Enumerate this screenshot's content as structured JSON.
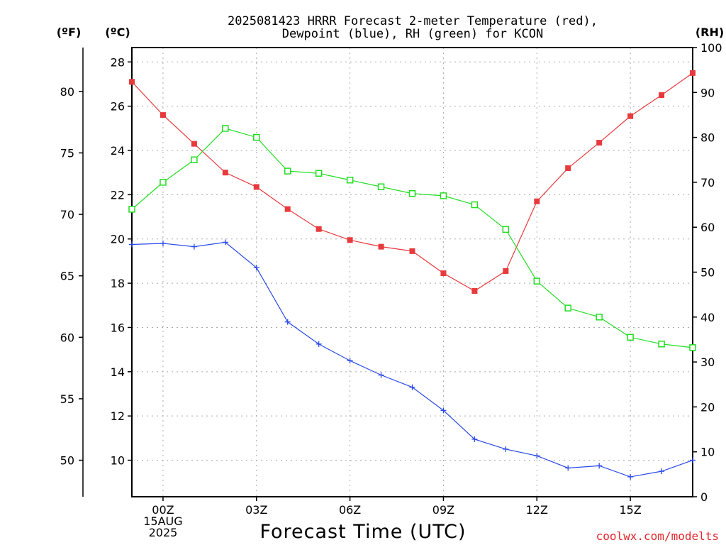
{
  "chart_data": {
    "type": "line",
    "title_lines": [
      "2025081423 HRRR Forecast 2-meter Temperature (red),",
      "Dewpoint (blue), RH (green) for KCON"
    ],
    "xlabel": "Forecast Time (UTC)",
    "x_ticks": [
      {
        "hour": 0,
        "lines": [
          "00Z",
          "15AUG",
          "2025"
        ]
      },
      {
        "hour": 3,
        "lines": [
          "03Z"
        ]
      },
      {
        "hour": 6,
        "lines": [
          "06Z"
        ]
      },
      {
        "hour": 9,
        "lines": [
          "09Z"
        ]
      },
      {
        "hour": 12,
        "lines": [
          "12Z"
        ]
      },
      {
        "hour": 15,
        "lines": [
          "15Z"
        ]
      }
    ],
    "xlim": [
      -1,
      17
    ],
    "grid": true,
    "axes": {
      "celsius": {
        "unit_label": "(ºC)",
        "ticks": [
          10,
          12,
          14,
          16,
          18,
          20,
          22,
          24,
          26,
          28
        ],
        "range": [
          8.35,
          28.65
        ]
      },
      "fahrenheit": {
        "unit_label": "(ºF)",
        "ticks": [
          50,
          55,
          60,
          65,
          70,
          75,
          80
        ],
        "range": [
          47.03,
          83.57
        ]
      },
      "rh": {
        "unit_label": "(RH)",
        "ticks": [
          0,
          10,
          20,
          30,
          40,
          50,
          60,
          70,
          80,
          90,
          100
        ],
        "range": [
          0,
          100
        ]
      }
    },
    "x": [
      -1,
      0,
      1,
      2,
      3,
      4,
      5,
      6,
      7,
      8,
      9,
      10,
      11,
      12,
      13,
      14,
      15,
      16,
      17
    ],
    "series": [
      {
        "name": "Temperature",
        "axis": "celsius",
        "color": "#e8393c",
        "marker": "filled-square",
        "values": [
          27.1,
          25.6,
          24.3,
          23.0,
          22.35,
          21.35,
          20.45,
          19.95,
          19.65,
          19.45,
          18.45,
          17.65,
          18.55,
          21.7,
          23.2,
          24.35,
          25.55,
          26.5,
          27.5
        ]
      },
      {
        "name": "Dewpoint",
        "axis": "celsius",
        "color": "#2a49e8",
        "marker": "plus",
        "values": [
          19.75,
          19.8,
          19.65,
          19.85,
          18.7,
          16.25,
          15.25,
          14.5,
          13.85,
          13.3,
          12.25,
          10.95,
          10.5,
          10.2,
          9.65,
          9.75,
          9.25,
          9.5,
          10.0
        ]
      },
      {
        "name": "RH",
        "axis": "rh",
        "color": "#22dd22",
        "marker": "open-square",
        "values": [
          64,
          70,
          75,
          82,
          80,
          72.5,
          72,
          70.5,
          69,
          67.5,
          67,
          65,
          59.5,
          48,
          42,
          40,
          35.5,
          34,
          33.2
        ]
      }
    ]
  },
  "credit": "coolwx.com/modelts"
}
